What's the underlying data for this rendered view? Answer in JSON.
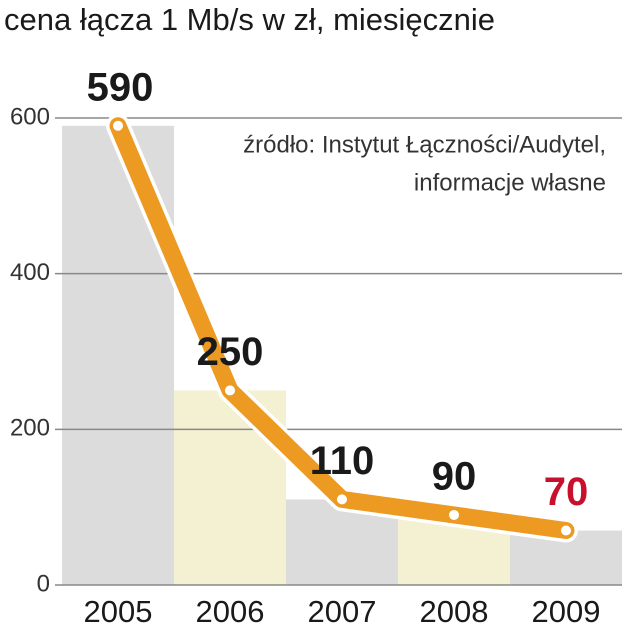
{
  "chart_data": {
    "type": "line",
    "title": "cena łącza 1 Mb/s w zł, miesięcznie",
    "source": [
      "źródło: Instytut Łączności/Audytel,",
      "informacje własne"
    ],
    "categories": [
      "2005",
      "2006",
      "2007",
      "2008",
      "2009"
    ],
    "values": [
      590,
      250,
      110,
      90,
      70
    ],
    "color": "#ec9a22",
    "band_colors": [
      "#dcdcdc",
      "#f4f1d2",
      "#dcdcdc",
      "#f4f1d2",
      "#dcdcdc"
    ],
    "value_label_colors": [
      "#1a1a1a",
      "#1a1a1a",
      "#1a1a1a",
      "#1a1a1a",
      "#c8102e"
    ],
    "ylim": [
      0,
      600
    ],
    "yticks": [
      0,
      200,
      400,
      600
    ],
    "grid": true
  }
}
